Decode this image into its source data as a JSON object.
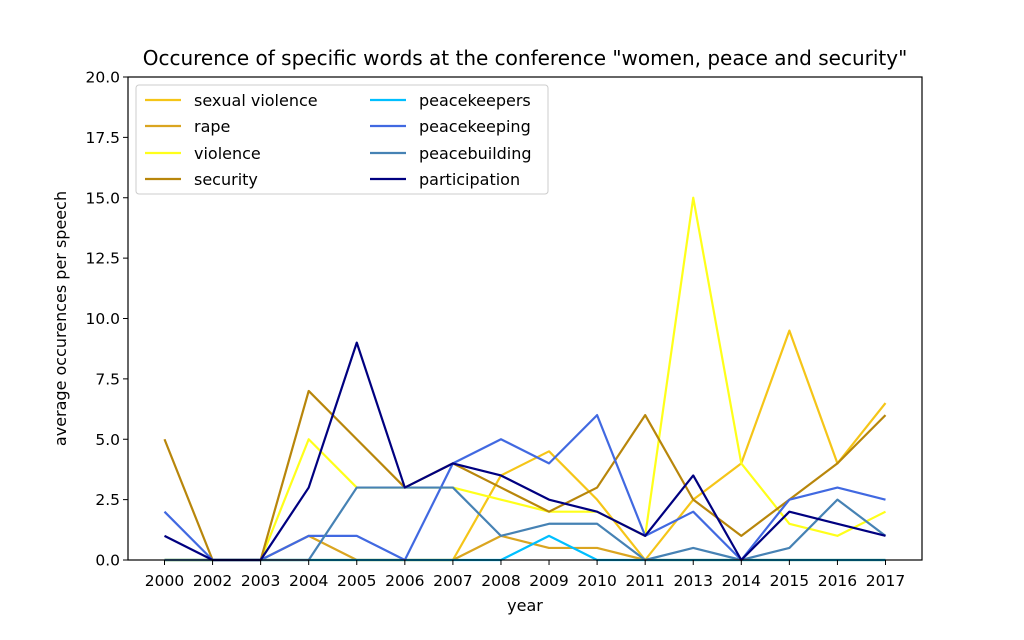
{
  "chart_data": {
    "type": "line",
    "title": "Occurence of specific words at the conference \"women, peace and security\"",
    "xlabel": "year",
    "ylabel": "average occurences per speech",
    "categories": [
      "2000",
      "2002",
      "2003",
      "2004",
      "2005",
      "2006",
      "2007",
      "2008",
      "2009",
      "2010",
      "2011",
      "2013",
      "2014",
      "2015",
      "2016",
      "2017"
    ],
    "ylim": [
      0,
      20
    ],
    "yticks": [
      "0.0",
      "2.5",
      "5.0",
      "7.5",
      "10.0",
      "12.5",
      "15.0",
      "17.5",
      "20.0"
    ],
    "grid": false,
    "legend_position": "top-left",
    "legend_columns": 2,
    "series": [
      {
        "name": "sexual violence",
        "color": "#f5c518",
        "values": [
          0,
          0,
          0,
          0,
          0,
          0,
          0,
          3.5,
          4.5,
          2.5,
          0,
          2.5,
          4,
          9.5,
          4,
          6.5
        ]
      },
      {
        "name": "rape",
        "color": "#daa520",
        "values": [
          0,
          0,
          0,
          1,
          0,
          0,
          0,
          1,
          0.5,
          0.5,
          0,
          0,
          0,
          0,
          0,
          0
        ]
      },
      {
        "name": "violence",
        "color": "#ffff1a",
        "values": [
          0,
          0,
          0,
          5,
          3,
          3,
          3,
          2.5,
          2,
          2,
          1,
          15,
          4,
          1.5,
          1,
          2
        ]
      },
      {
        "name": "security",
        "color": "#b8860b",
        "values": [
          5,
          0,
          0,
          7,
          5,
          3,
          4,
          3,
          2,
          3,
          6,
          2.5,
          1,
          2.5,
          4,
          6
        ]
      },
      {
        "name": "peacekeepers",
        "color": "#00bfff",
        "values": [
          0,
          0,
          0,
          0,
          0,
          0,
          0,
          0,
          1,
          0,
          0,
          0,
          0,
          0,
          0,
          0
        ]
      },
      {
        "name": "peacekeeping",
        "color": "#4169e1",
        "values": [
          2,
          0,
          0,
          1,
          1,
          0,
          4,
          5,
          4,
          6,
          1,
          2,
          0,
          2.5,
          3,
          2.5
        ]
      },
      {
        "name": "peacebuilding",
        "color": "#4682b4",
        "values": [
          0,
          0,
          0,
          0,
          3,
          3,
          3,
          1,
          1.5,
          1.5,
          0,
          0.5,
          0,
          0.5,
          2.5,
          1
        ]
      },
      {
        "name": "participation",
        "color": "#000080",
        "values": [
          1,
          0,
          0,
          3,
          9,
          3,
          4,
          3.5,
          2.5,
          2,
          1,
          3.5,
          0,
          2,
          1.5,
          1
        ]
      }
    ]
  }
}
